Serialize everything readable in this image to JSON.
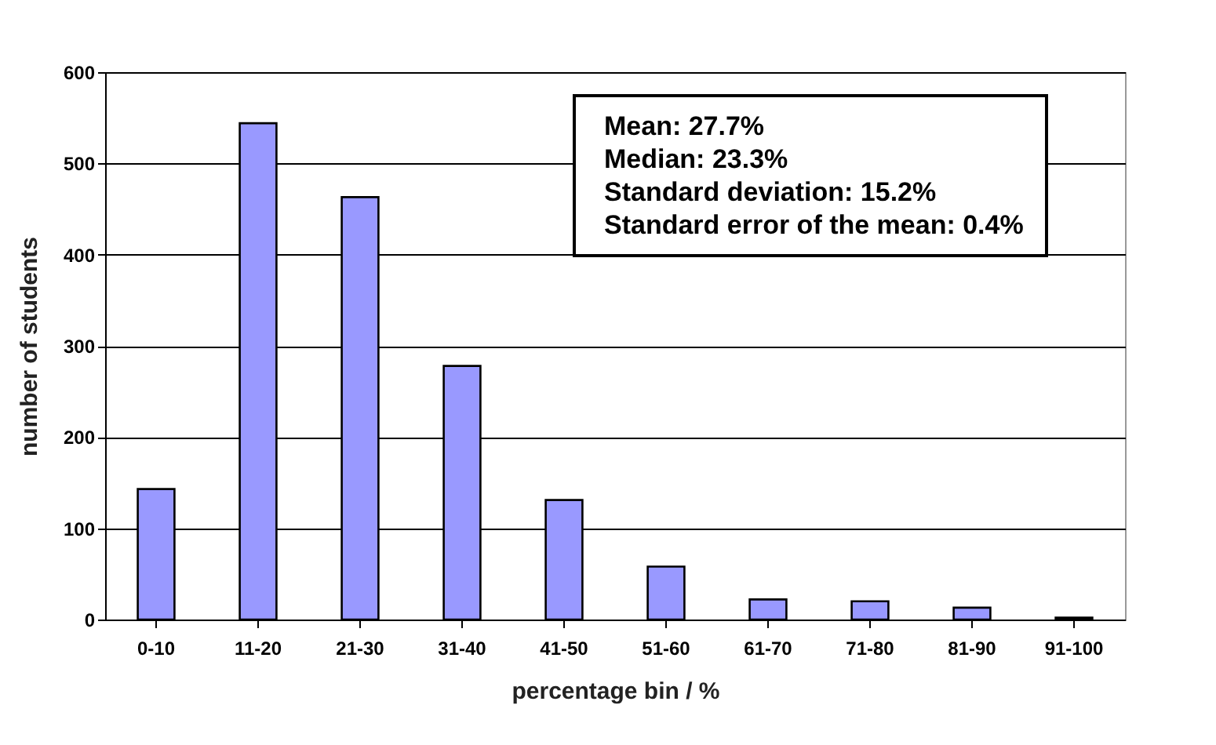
{
  "chart_data": {
    "type": "bar",
    "xlabel": "percentage bin / %",
    "ylabel": "number of students",
    "categories": [
      "0-10",
      "11-20",
      "21-30",
      "31-40",
      "41-50",
      "51-60",
      "61-70",
      "71-80",
      "81-90",
      "91-100"
    ],
    "values": [
      143,
      544,
      463,
      278,
      131,
      58,
      22,
      20,
      13,
      2
    ],
    "color": "#9999ff",
    "ylim": [
      0,
      600
    ],
    "yticks": [
      0,
      100,
      200,
      300,
      400,
      500,
      600
    ],
    "grid": "y",
    "annotations": [
      "Mean: 27.7%",
      "Median: 23.3%",
      "Standard deviation: 15.2%",
      "Standard error of the mean: 0.4%"
    ]
  }
}
